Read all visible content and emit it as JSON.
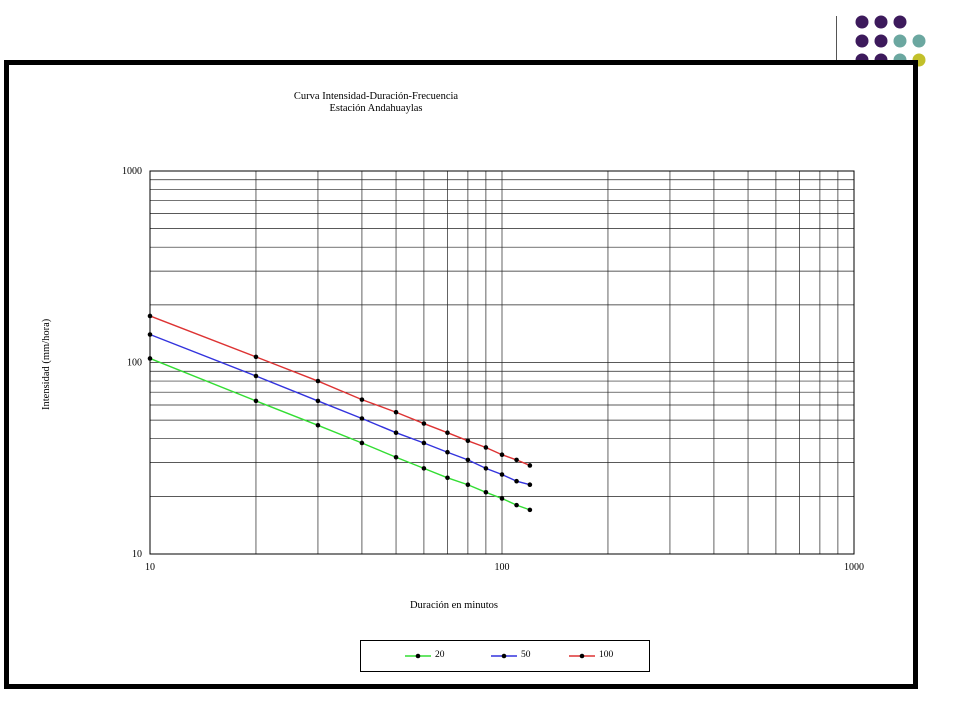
{
  "decor": {
    "dot_colors": {
      "purple": "#3d1a5c",
      "teal": "#6ba7a0",
      "olive": "#c2c02a",
      "lavender": "#cfd1e6"
    }
  },
  "chart_data": {
    "type": "line",
    "title": "Curva Intensidad-Duración-Frecuencia",
    "subtitle": "Estación Andahuaylas",
    "xlabel": "Duración en minutos",
    "ylabel": "Intensidad (mm/hora)",
    "x_scale": "log",
    "y_scale": "log",
    "xlim": [
      10,
      1000
    ],
    "ylim": [
      10,
      1000
    ],
    "x_ticks": [
      "10",
      "100",
      "1000"
    ],
    "y_ticks": [
      "10",
      "100",
      "1000"
    ],
    "grid": true,
    "legend_position": "bottom",
    "x": [
      10,
      20,
      30,
      40,
      50,
      60,
      70,
      80,
      90,
      100,
      110,
      120
    ],
    "series": [
      {
        "name": "20",
        "color": "#33dd33",
        "values": [
          105,
          63,
          47,
          38,
          32,
          28,
          25,
          23,
          21,
          19.5,
          18,
          17
        ]
      },
      {
        "name": "50",
        "color": "#3333dd",
        "values": [
          140,
          85,
          63,
          51,
          43,
          38,
          34,
          31,
          28,
          26,
          24,
          23
        ]
      },
      {
        "name": "100",
        "color": "#dd3333",
        "values": [
          175,
          107,
          80,
          64,
          55,
          48,
          43,
          39,
          36,
          33,
          31,
          29
        ]
      }
    ]
  }
}
